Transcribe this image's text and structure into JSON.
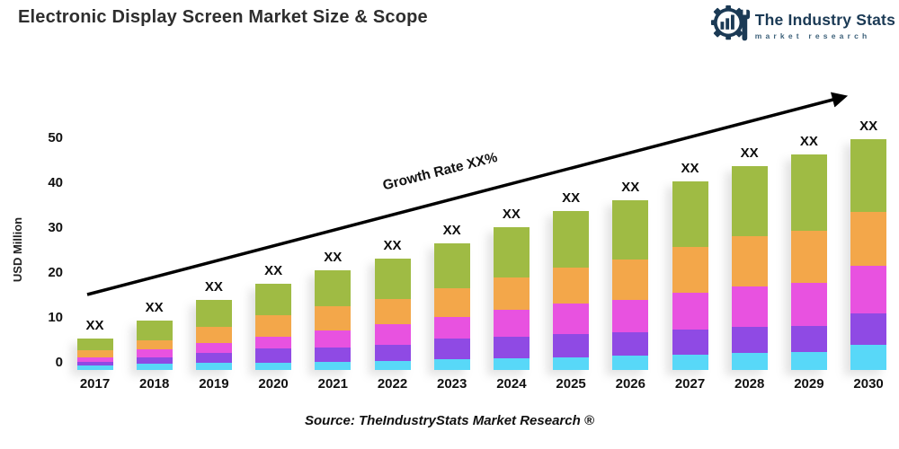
{
  "header": {
    "title": "Electronic Display Screen Market Size & Scope",
    "logo": {
      "name": "The Industry Stats",
      "tagline": "market research",
      "icon": "gear-bars-wrench-icon",
      "color_navy": "#1b3a55",
      "color_tagline": "#3d617a"
    }
  },
  "chart_data": {
    "type": "bar",
    "stacked": true,
    "title": "Electronic Display Screen Market Size & Scope",
    "xlabel": "",
    "ylabel": "USD Million",
    "ylim": [
      0,
      50
    ],
    "yticks": [
      0,
      10,
      20,
      30,
      40,
      50
    ],
    "grid": false,
    "legend_position": "none",
    "categories": [
      "2017",
      "2018",
      "2019",
      "2020",
      "2021",
      "2022",
      "2023",
      "2024",
      "2025",
      "2026",
      "2027",
      "2028",
      "2029",
      "2030"
    ],
    "bar_top_label": "XX",
    "annotation": {
      "text": "Growth Rate XX%",
      "shape": "arrow-up-right",
      "color": "#000000"
    },
    "series": [
      {
        "name": "segment-cyan",
        "color": "#58d8f8",
        "values": [
          0.8,
          1.2,
          1.4,
          1.5,
          1.7,
          1.9,
          2.2,
          2.5,
          2.7,
          3.0,
          3.3,
          3.6,
          3.8,
          5.5
        ]
      },
      {
        "name": "segment-purple",
        "color": "#8f4ae4",
        "values": [
          0.8,
          1.4,
          2.2,
          3.0,
          3.1,
          3.4,
          4.5,
          4.6,
          4.9,
          5.1,
          5.4,
          5.6,
          5.7,
          6.8
        ]
      },
      {
        "name": "segment-magenta",
        "color": "#e852e0",
        "values": [
          0.8,
          1.5,
          2.0,
          2.5,
          3.5,
          4.4,
          4.5,
          5.7,
          6.6,
          6.9,
          8.0,
          8.8,
          9.4,
          10.2
        ]
      },
      {
        "name": "segment-orange",
        "color": "#f3a74a",
        "values": [
          1.4,
          1.9,
          3.3,
          4.4,
          5.2,
          5.3,
          6.2,
          6.9,
          7.7,
          8.7,
          9.8,
          10.9,
          11.1,
          11.6
        ]
      },
      {
        "name": "segment-green",
        "color": "#9fbb44",
        "values": [
          2.2,
          4.0,
          5.6,
          6.6,
          7.5,
          8.5,
          9.6,
          10.8,
          12.1,
          12.8,
          14.0,
          15.1,
          16.5,
          15.9
        ]
      }
    ],
    "totals": [
      6,
      10,
      14.5,
      18,
      21,
      23.5,
      27,
      30.5,
      34,
      36.5,
      40.5,
      44,
      46.5,
      50
    ]
  },
  "footer": {
    "source": "Source: TheIndustryStats Market Research ®"
  }
}
